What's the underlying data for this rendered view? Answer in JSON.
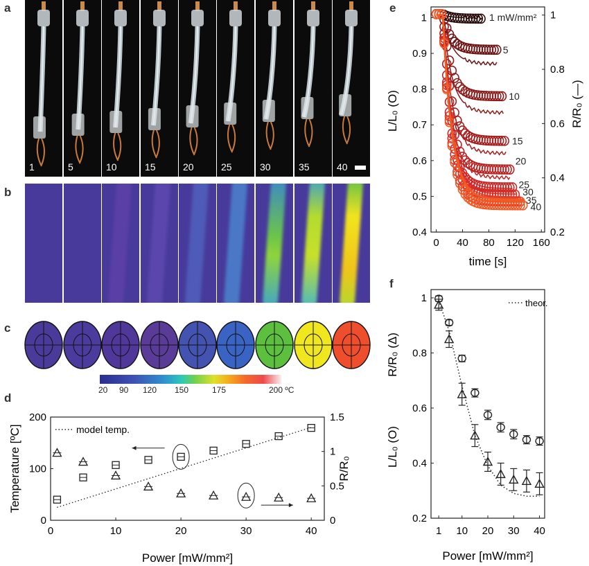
{
  "panel_letters": {
    "a": "a",
    "b": "b",
    "c": "c",
    "d": "d",
    "e": "e",
    "f": "f"
  },
  "panel_a": {
    "frames": [
      "1",
      "5",
      "10",
      "15",
      "20",
      "25",
      "30",
      "35",
      "40"
    ]
  },
  "panel_c": {
    "ellipse_colors": [
      "#4a3a9a",
      "#4b3b9c",
      "#50389a",
      "#5a3c98",
      "#4453b0",
      "#3a64c4",
      "#5cbf3e",
      "#f0e71e",
      "#ee4e2c"
    ],
    "colorbar_ticks": [
      "20",
      "90",
      "120",
      "150",
      "175",
      "200 ºC"
    ]
  },
  "chart_data": [
    {
      "panel": "d",
      "type": "scatter",
      "xlabel": "Power [mW/mm²]",
      "ylabel": "Temperature [ºC]",
      "ylabel_right": "R/R₀",
      "xlim": [
        0,
        42
      ],
      "ylim": [
        0,
        200
      ],
      "ylim_right": [
        0,
        1.5
      ],
      "x_ticks": [
        "0",
        "10",
        "20",
        "30",
        "40"
      ],
      "y_ticks": [
        "0",
        "100",
        "200"
      ],
      "y_ticks_right": [
        "0",
        "0.5",
        "1",
        "1.5"
      ],
      "legend": "model temp.",
      "x": [
        1,
        5,
        10,
        15,
        20,
        25,
        30,
        35,
        40
      ],
      "series": [
        {
          "marker": "square",
          "axis": "left",
          "values": [
            40,
            83,
            107,
            117,
            123,
            135,
            148,
            163,
            179
          ]
        },
        {
          "marker": "triangle",
          "axis": "right",
          "values": [
            0.98,
            0.85,
            0.65,
            0.49,
            0.39,
            0.36,
            0.34,
            0.33,
            0.32
          ]
        },
        {
          "style": "dotted",
          "axis": "left",
          "x": [
            1,
            40
          ],
          "values": [
            25,
            180
          ]
        }
      ]
    },
    {
      "panel": "e",
      "type": "line",
      "xlabel": "time [s]",
      "ylabel": "L/L₀ (O)",
      "ylabel_right": "R/R₀ (—)",
      "xlim": [
        -8,
        165
      ],
      "ylim": [
        0.4,
        1.03
      ],
      "ylim_right": [
        0.2,
        1.03
      ],
      "x_ticks": [
        "0",
        "40",
        "80",
        "120",
        "160"
      ],
      "y_ticks": [
        "0.4",
        "0.5",
        "0.6",
        "0.7",
        "0.8",
        "0.9",
        "1"
      ],
      "y_ticks_right": [
        "0.2",
        "0.4",
        "0.6",
        "0.8",
        "1"
      ],
      "curve_labels": [
        "1 mW/mm²",
        "5",
        "10",
        "15",
        "20",
        "25",
        "30",
        "35",
        "40"
      ],
      "series": [
        {
          "name": "1",
          "color": "#2a0d0d",
          "plateau": 0.997,
          "r_end": 0.99,
          "t_end": 70
        },
        {
          "name": "5",
          "color": "#6e1414",
          "plateau": 0.91,
          "r_end": 0.82,
          "t_end": 93
        },
        {
          "name": "10",
          "color": "#8b1a1a",
          "plateau": 0.78,
          "r_end": 0.64,
          "t_end": 102
        },
        {
          "name": "15",
          "color": "#a61d1d",
          "plateau": 0.655,
          "r_end": 0.49,
          "t_end": 107
        },
        {
          "name": "20",
          "color": "#bb2222",
          "plateau": 0.575,
          "r_end": 0.4,
          "t_end": 112
        },
        {
          "name": "25",
          "color": "#cc2626",
          "plateau": 0.525,
          "r_end": 0.36,
          "t_end": 117
        },
        {
          "name": "30",
          "color": "#d92b26",
          "plateau": 0.505,
          "r_end": 0.34,
          "t_end": 123
        },
        {
          "name": "35",
          "color": "#e53a26",
          "plateau": 0.485,
          "r_end": 0.33,
          "t_end": 128
        },
        {
          "name": "40",
          "color": "#f05a24",
          "plateau": 0.475,
          "r_end": 0.32,
          "t_end": 135
        }
      ]
    },
    {
      "panel": "f",
      "type": "scatter",
      "xlabel": "Power [mW/mm²]",
      "ylabel_top": "R/R₀ (Δ)",
      "ylabel_bottom": "L/L₀ (O)",
      "xlim": [
        -2,
        42
      ],
      "ylim": [
        0.2,
        1.03
      ],
      "x_ticks": [
        "1",
        "10",
        "20",
        "30",
        "40"
      ],
      "y_ticks": [
        "0.2",
        "0.4",
        "0.6",
        "0.8",
        "1"
      ],
      "legend": "theor.",
      "x": [
        1,
        5,
        10,
        15,
        20,
        25,
        30,
        35,
        40
      ],
      "series": [
        {
          "marker": "circle",
          "values": [
            0.997,
            0.91,
            0.78,
            0.655,
            0.575,
            0.53,
            0.505,
            0.485,
            0.48
          ],
          "err": [
            0.01,
            0.01,
            0.012,
            0.015,
            0.017,
            0.017,
            0.017,
            0.015,
            0.015
          ]
        },
        {
          "marker": "triangle",
          "values": [
            0.975,
            0.85,
            0.65,
            0.5,
            0.405,
            0.36,
            0.34,
            0.335,
            0.325
          ],
          "err": [
            0.02,
            0.03,
            0.04,
            0.04,
            0.035,
            0.04,
            0.04,
            0.04,
            0.04
          ]
        },
        {
          "style": "dotted",
          "x": [
            1,
            5,
            10,
            15,
            20,
            25,
            30,
            35,
            40
          ],
          "values": [
            0.99,
            0.88,
            0.68,
            0.5,
            0.39,
            0.32,
            0.29,
            0.28,
            0.28
          ]
        }
      ]
    }
  ]
}
